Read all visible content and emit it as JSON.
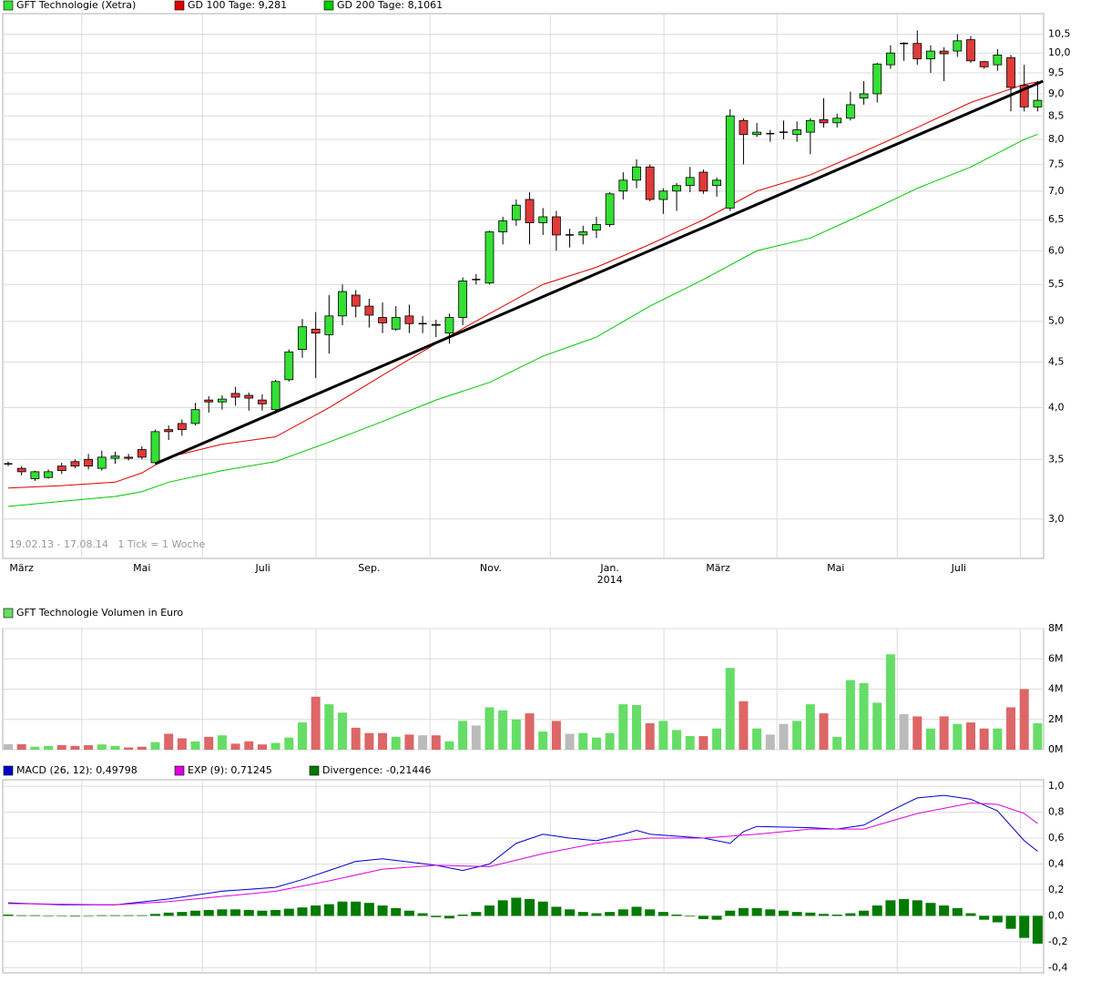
{
  "chart_data": [
    {
      "type": "candlestick",
      "annotation": "19.02.13 - 17.08.14   1 Tick = 1 Woche",
      "log_scale": true,
      "grid": true,
      "legend": "top-left",
      "xlim": [
        -0.41,
        77.45
      ],
      "ylim": [
        2.71,
        11.07
      ],
      "yticks": [
        {
          "value": 3,
          "label": "3,0"
        },
        {
          "value": 3.5,
          "label": "3,5"
        },
        {
          "value": 4,
          "label": "4,0"
        },
        {
          "value": 4.5,
          "label": "4,5"
        },
        {
          "value": 5,
          "label": "5,0"
        },
        {
          "value": 5.5,
          "label": "5,5"
        },
        {
          "value": 6,
          "label": "6,0"
        },
        {
          "value": 6.5,
          "label": "6,5"
        },
        {
          "value": 7,
          "label": "7,0"
        },
        {
          "value": 7.5,
          "label": "7,5"
        },
        {
          "value": 8,
          "label": "8,0"
        },
        {
          "value": 8.5,
          "label": "8,5"
        },
        {
          "value": 9,
          "label": "9,0"
        },
        {
          "value": 9.5,
          "label": "9,5"
        },
        {
          "value": 10,
          "label": "10,0"
        },
        {
          "value": 10.5,
          "label": "10,5"
        }
      ],
      "xticks": [
        {
          "value": 1,
          "label": "März"
        },
        {
          "value": 10,
          "label": "Mai"
        },
        {
          "value": 19.05,
          "label": "Juli"
        },
        {
          "value": 27,
          "label": "Sep."
        },
        {
          "value": 36.1,
          "label": "Nov."
        },
        {
          "value": 45,
          "label": "Jan.",
          "year": "2014"
        },
        {
          "value": 53.1,
          "label": "März"
        },
        {
          "value": 61.9,
          "label": "Mai"
        },
        {
          "value": 71.1,
          "label": "Juli"
        }
      ],
      "series": [
        {
          "name": "GFT Technologie (Xetra)",
          "color": "#33e033",
          "down_color": "#e03a3a",
          "open": [
            3.46,
            3.42,
            3.33,
            3.34,
            3.44,
            3.48,
            3.5,
            3.42,
            3.51,
            3.52,
            3.59,
            3.47,
            3.78,
            3.84,
            3.84,
            4.08,
            4.06,
            4.15,
            4.13,
            4.08,
            3.98,
            4.3,
            4.65,
            4.9,
            4.83,
            5.07,
            5.35,
            5.2,
            5.05,
            4.9,
            5.07,
            4.97,
            4.96,
            4.85,
            5.05,
            5.57,
            5.52,
            6.3,
            6.5,
            6.85,
            6.45,
            6.55,
            6.25,
            6.25,
            6.33,
            6.42,
            7.0,
            7.2,
            7.45,
            6.85,
            7.0,
            7.1,
            7.35,
            7.1,
            6.7,
            8.4,
            8.1,
            8.12,
            8.15,
            8.1,
            8.15,
            8.42,
            8.35,
            8.45,
            8.9,
            9.0,
            9.7,
            10.25,
            10.25,
            9.85,
            10.05,
            10.05,
            10.35,
            9.78,
            9.7,
            9.88,
            9.2,
            8.7
          ],
          "high": [
            3.48,
            3.44,
            3.4,
            3.41,
            3.47,
            3.5,
            3.55,
            3.58,
            3.57,
            3.55,
            3.62,
            3.78,
            3.82,
            3.88,
            4.05,
            4.12,
            4.13,
            4.22,
            4.16,
            4.14,
            4.3,
            4.65,
            5.03,
            5.12,
            5.35,
            5.5,
            5.42,
            5.3,
            5.25,
            5.2,
            5.22,
            5.07,
            5.02,
            5.1,
            5.6,
            5.65,
            6.32,
            6.55,
            6.85,
            6.98,
            6.7,
            6.65,
            6.35,
            6.4,
            6.55,
            6.98,
            7.35,
            7.6,
            7.5,
            7.05,
            7.15,
            7.45,
            7.4,
            7.25,
            8.65,
            8.45,
            8.35,
            8.2,
            8.4,
            8.38,
            8.45,
            8.9,
            8.55,
            9.05,
            9.3,
            9.75,
            10.2,
            10.28,
            10.6,
            10.2,
            10.15,
            10.5,
            10.45,
            9.8,
            10.1,
            9.95,
            9.7,
            9.3
          ],
          "low": [
            3.44,
            3.36,
            3.31,
            3.33,
            3.37,
            3.42,
            3.41,
            3.4,
            3.46,
            3.49,
            3.5,
            3.46,
            3.68,
            3.72,
            3.82,
            3.95,
            3.98,
            4.02,
            3.97,
            3.97,
            3.96,
            4.28,
            4.55,
            4.32,
            4.6,
            4.95,
            5.05,
            4.92,
            4.85,
            4.88,
            4.85,
            4.85,
            4.8,
            4.72,
            4.95,
            5.5,
            5.5,
            6.1,
            6.4,
            6.1,
            6.25,
            6.0,
            6.05,
            6.1,
            6.2,
            6.38,
            6.85,
            7.05,
            6.82,
            6.6,
            6.65,
            6.98,
            6.95,
            6.9,
            6.65,
            7.5,
            8.05,
            7.95,
            8.0,
            7.95,
            7.7,
            8.25,
            8.25,
            8.4,
            8.75,
            8.8,
            9.6,
            9.8,
            9.7,
            9.5,
            9.3,
            9.9,
            9.75,
            9.6,
            9.55,
            8.6,
            8.6,
            8.6
          ],
          "close": [
            3.46,
            3.39,
            3.39,
            3.39,
            3.4,
            3.44,
            3.44,
            3.52,
            3.53,
            3.51,
            3.52,
            3.76,
            3.76,
            3.78,
            3.98,
            4.06,
            4.09,
            4.11,
            4.1,
            4.04,
            4.28,
            4.62,
            4.93,
            4.85,
            5.07,
            5.4,
            5.2,
            5.08,
            4.98,
            5.05,
            4.97,
            4.97,
            4.95,
            5.05,
            5.55,
            5.57,
            6.3,
            6.48,
            6.75,
            6.45,
            6.55,
            6.25,
            6.25,
            6.3,
            6.42,
            6.95,
            7.2,
            7.45,
            6.85,
            7.0,
            7.1,
            7.25,
            7.0,
            7.2,
            8.5,
            8.1,
            8.15,
            8.12,
            8.15,
            8.2,
            8.4,
            8.35,
            8.45,
            8.75,
            9.0,
            9.72,
            10.0,
            10.25,
            9.85,
            10.05,
            9.98,
            10.32,
            9.8,
            9.65,
            9.95,
            9.15,
            8.7,
            8.85
          ]
        },
        {
          "name": "GD 100 Tage: 9,281",
          "color": "#e00000",
          "x": [
            0,
            4,
            8,
            10,
            12,
            16,
            20,
            24,
            28,
            32,
            36,
            40,
            44,
            48,
            52,
            56,
            60,
            64,
            68,
            72,
            76,
            77
          ],
          "values": [
            3.25,
            3.27,
            3.3,
            3.38,
            3.52,
            3.64,
            3.71,
            4.0,
            4.35,
            4.72,
            5.1,
            5.5,
            5.75,
            6.1,
            6.5,
            7.0,
            7.3,
            7.75,
            8.25,
            8.8,
            9.22,
            9.281
          ]
        },
        {
          "name": "GD 200 Tage: 8,1061",
          "color": "#00c800",
          "x": [
            0,
            4,
            8,
            10,
            12,
            16,
            20,
            24,
            28,
            32,
            36,
            40,
            44,
            48,
            52,
            56,
            60,
            64,
            68,
            72,
            76,
            77
          ],
          "values": [
            3.1,
            3.14,
            3.18,
            3.22,
            3.3,
            3.4,
            3.48,
            3.66,
            3.86,
            4.08,
            4.27,
            4.57,
            4.8,
            5.2,
            5.57,
            6.0,
            6.2,
            6.6,
            7.05,
            7.45,
            8.0,
            8.1061
          ]
        }
      ],
      "trendline": {
        "color": "#000000",
        "x": [
          11,
          77.4
        ],
        "values": [
          3.46,
          9.3
        ]
      }
    },
    {
      "type": "bar",
      "title": "GFT Technologie Volumen in Euro",
      "color": "#66dd66",
      "down_color": "#dd6666",
      "flat_color": "#bbbbbb",
      "grid": true,
      "xlim": [
        -0.41,
        77.45
      ],
      "ylim": [
        0,
        8000000
      ],
      "yticks": [
        {
          "value": 0,
          "label": "0M"
        },
        {
          "value": 2000000,
          "label": "2M"
        },
        {
          "value": 4000000,
          "label": "4M"
        },
        {
          "value": 6000000,
          "label": "6M"
        },
        {
          "value": 8000000,
          "label": "8M"
        }
      ],
      "values": [
        360000,
        360000,
        200000,
        250000,
        300000,
        250000,
        300000,
        350000,
        250000,
        150000,
        200000,
        500000,
        1050000,
        750000,
        550000,
        850000,
        950000,
        400000,
        550000,
        350000,
        450000,
        800000,
        1800000,
        3500000,
        3000000,
        2450000,
        1450000,
        1100000,
        1100000,
        850000,
        1000000,
        950000,
        950000,
        550000,
        1900000,
        1600000,
        2800000,
        2600000,
        2000000,
        2400000,
        1200000,
        1900000,
        1050000,
        1100000,
        800000,
        1100000,
        3000000,
        2950000,
        1750000,
        1900000,
        1300000,
        900000,
        900000,
        1400000,
        5400000,
        3200000,
        1400000,
        1000000,
        1700000,
        1900000,
        3000000,
        2400000,
        850000,
        4600000,
        4400000,
        3100000,
        6300000,
        2350000,
        2200000,
        1400000,
        2200000,
        1700000,
        1800000,
        1400000,
        1400000,
        2800000,
        4000000,
        1750000
      ]
    },
    {
      "type": "line",
      "grid": true,
      "legend": "top-left",
      "xlim": [
        -0.41,
        77.45
      ],
      "ylim": [
        -0.44,
        1.05
      ],
      "yticks": [
        {
          "value": -0.4,
          "label": "-0,4"
        },
        {
          "value": -0.2,
          "label": "-0,2"
        },
        {
          "value": 0,
          "label": "0,0"
        },
        {
          "value": 0.2,
          "label": "0,2"
        },
        {
          "value": 0.4,
          "label": "0,4"
        },
        {
          "value": 0.6,
          "label": "0,6"
        },
        {
          "value": 0.8,
          "label": "0,8"
        },
        {
          "value": 1,
          "label": "1,0"
        }
      ],
      "series": [
        {
          "name": "MACD (26, 12): 0,49798",
          "color": "#0000cc",
          "x": [
            0,
            4,
            8,
            12,
            16,
            20,
            22,
            24,
            26,
            28,
            32,
            34,
            36,
            38,
            40,
            42,
            44,
            46,
            47,
            48,
            52,
            54,
            55,
            56,
            60,
            62,
            64,
            66,
            68,
            70,
            72,
            74,
            76,
            77
          ],
          "values": [
            0.1,
            0.085,
            0.085,
            0.13,
            0.19,
            0.22,
            0.28,
            0.35,
            0.42,
            0.44,
            0.39,
            0.35,
            0.4,
            0.56,
            0.63,
            0.6,
            0.58,
            0.63,
            0.66,
            0.63,
            0.6,
            0.56,
            0.65,
            0.69,
            0.68,
            0.67,
            0.7,
            0.81,
            0.91,
            0.93,
            0.9,
            0.81,
            0.58,
            0.49798
          ]
        },
        {
          "name": "EXP (9): 0,71245",
          "color": "#dd00dd",
          "x": [
            0,
            4,
            8,
            12,
            16,
            20,
            24,
            28,
            32,
            36,
            40,
            44,
            48,
            52,
            56,
            60,
            64,
            68,
            72,
            74,
            76,
            77
          ],
          "values": [
            0.095,
            0.09,
            0.085,
            0.11,
            0.15,
            0.19,
            0.27,
            0.36,
            0.39,
            0.38,
            0.48,
            0.56,
            0.6,
            0.6,
            0.63,
            0.67,
            0.67,
            0.79,
            0.87,
            0.86,
            0.79,
            0.71245
          ]
        },
        {
          "name": "Divergence: -0,21446",
          "color": "#007a00",
          "type": "bar",
          "values": [
            0.01,
            0.005,
            0.005,
            0,
            0,
            -0.005,
            0,
            0.005,
            0.005,
            0.005,
            0.005,
            0.015,
            0.025,
            0.03,
            0.04,
            0.045,
            0.05,
            0.05,
            0.045,
            0.04,
            0.045,
            0.055,
            0.065,
            0.08,
            0.09,
            0.11,
            0.11,
            0.1,
            0.08,
            0.06,
            0.04,
            0.02,
            -0.01,
            -0.02,
            0.01,
            0.03,
            0.08,
            0.12,
            0.14,
            0.13,
            0.11,
            0.07,
            0.05,
            0.03,
            0.02,
            0.03,
            0.05,
            0.07,
            0.05,
            0.03,
            0.01,
            -0.005,
            -0.025,
            -0.03,
            0.04,
            0.06,
            0.06,
            0.05,
            0.04,
            0.03,
            0.025,
            0.015,
            0.01,
            0.02,
            0.04,
            0.08,
            0.12,
            0.13,
            0.12,
            0.1,
            0.08,
            0.06,
            0.02,
            -0.03,
            -0.05,
            -0.1,
            -0.17,
            -0.21446
          ]
        }
      ]
    }
  ]
}
